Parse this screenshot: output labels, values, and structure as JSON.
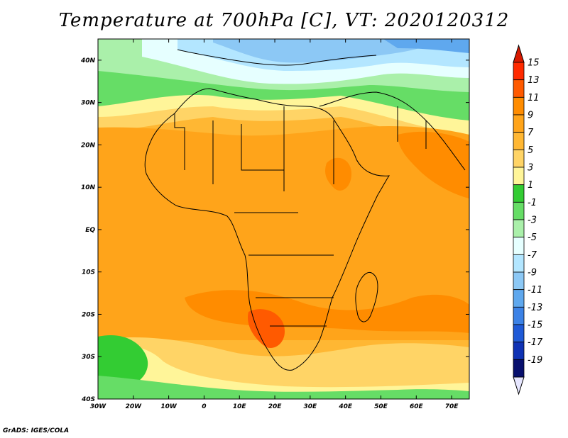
{
  "title": "Temperature at 700hPa [C], VT: 2020120312",
  "footer": "GrADS: IGES/COLA",
  "map": {
    "lon_range": [
      -30,
      75
    ],
    "lat_range": [
      -40,
      45
    ],
    "lon_ticks": [
      "30W",
      "20W",
      "10W",
      "0",
      "10E",
      "20E",
      "30E",
      "40E",
      "50E",
      "60E",
      "70E"
    ],
    "lat_ticks": [
      "40N",
      "30N",
      "20N",
      "10N",
      "EQ",
      "10S",
      "20S",
      "30S",
      "40S"
    ]
  },
  "colorbar": {
    "labels": [
      "15",
      "13",
      "11",
      "9",
      "7",
      "5",
      "3",
      "1",
      "-1",
      "-3",
      "-5",
      "-7",
      "-9",
      "-11",
      "-13",
      "-15",
      "-17",
      "-19"
    ],
    "colors": [
      "#ff2a00",
      "#ff5a00",
      "#ff8c00",
      "#ffa41a",
      "#ffb733",
      "#ffd466",
      "#fff599",
      "#33cc33",
      "#66dd66",
      "#aaf0aa",
      "#e6ffff",
      "#b3e6ff",
      "#8cc8f5",
      "#5fa8ee",
      "#3c82e6",
      "#1f5ad7",
      "#0f32b4",
      "#08106e"
    ],
    "top_color": "#d71900",
    "bottom_color": "#e6e6ff"
  }
}
